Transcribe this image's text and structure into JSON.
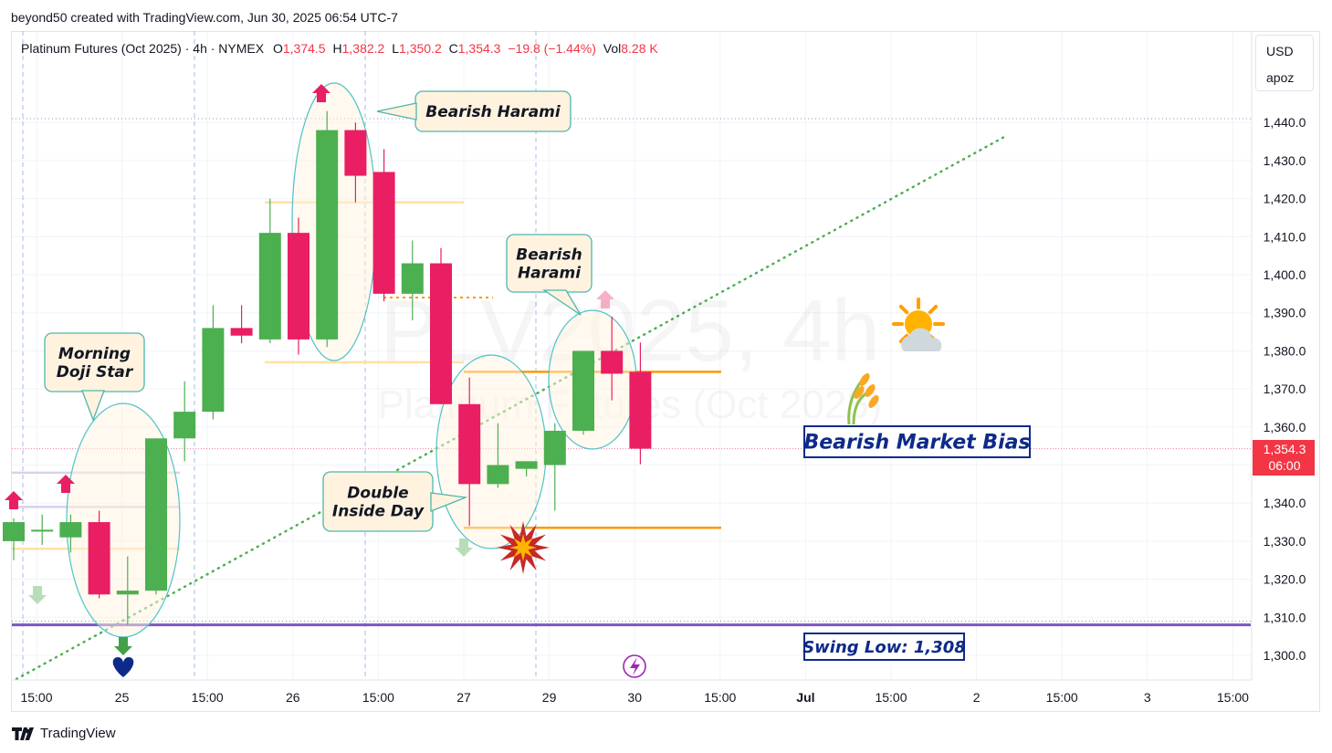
{
  "header": {
    "author_line": "beyond50 created with TradingView.com, Jun 30, 2025 06:54 UTC-7"
  },
  "legend": {
    "symbol": "Platinum Futures (Oct 2025) · 4h · NYMEX",
    "open_label": "O",
    "open": "1,374.5",
    "high_label": "H",
    "high": "1,382.2",
    "low_label": "L",
    "low": "1,350.2",
    "close_label": "C",
    "close": "1,354.3",
    "change": "−19.8 (−1.44%)",
    "vol_label": "Vol",
    "vol": "8.28 K"
  },
  "currency_box": {
    "currency": "USD",
    "unit": "apoz"
  },
  "price_tag": {
    "price": "1,354.3",
    "countdown": "06:00"
  },
  "watermark": {
    "line1": "PLV2025, 4h",
    "line2": "Platinum Futures (Oct 2025)"
  },
  "brand": {
    "name": "TradingView"
  },
  "colors": {
    "up": "#4caf50",
    "down": "#e91e63",
    "trend": "#4caf50",
    "orange": "#ff9800",
    "swing": "#7e57c2",
    "accent_red": "#f23645"
  },
  "chart_data": {
    "type": "candlestick",
    "interval": "4h",
    "y_axis": {
      "ticks": [
        1300,
        1310,
        1320,
        1330,
        1340,
        1350,
        1360,
        1370,
        1380,
        1390,
        1400,
        1410,
        1420,
        1430,
        1440
      ],
      "tick_labels": [
        "1,300.0",
        "1,310.0",
        "1,320.0",
        "1,330.0",
        "1,340.0",
        "1,350.0",
        "1,360.0",
        "1,370.0",
        "1,380.0",
        "1,390.0",
        "1,400.0",
        "1,410.0",
        "1,420.0",
        "1,430.0",
        "1,440.0"
      ],
      "ylim": [
        1295,
        1450
      ]
    },
    "x_axis": {
      "labels": [
        "15:00",
        "25",
        "15:00",
        "26",
        "15:00",
        "27",
        "29",
        "30",
        "15:00",
        "Jul",
        "15:00",
        "2",
        "15:00",
        "3",
        "15:00"
      ]
    },
    "candles": [
      {
        "o": 1330,
        "h": 1336,
        "l": 1325,
        "c": 1335
      },
      {
        "o": 1333,
        "h": 1337,
        "l": 1329,
        "c": 1333
      },
      {
        "o": 1331,
        "h": 1337,
        "l": 1327,
        "c": 1335
      },
      {
        "o": 1335,
        "h": 1338,
        "l": 1315,
        "c": 1316
      },
      {
        "o": 1316,
        "h": 1326,
        "l": 1308,
        "c": 1317
      },
      {
        "o": 1317,
        "h": 1357,
        "l": 1316,
        "c": 1357
      },
      {
        "o": 1357,
        "h": 1372,
        "l": 1351,
        "c": 1364
      },
      {
        "o": 1364,
        "h": 1392,
        "l": 1362,
        "c": 1386
      },
      {
        "o": 1386,
        "h": 1392,
        "l": 1382,
        "c": 1384
      },
      {
        "o": 1383,
        "h": 1420,
        "l": 1382,
        "c": 1411
      },
      {
        "o": 1411,
        "h": 1415,
        "l": 1379,
        "c": 1383
      },
      {
        "o": 1383,
        "h": 1443,
        "l": 1381,
        "c": 1438
      },
      {
        "o": 1438,
        "h": 1440,
        "l": 1419,
        "c": 1426
      },
      {
        "o": 1427,
        "h": 1433,
        "l": 1393,
        "c": 1395
      },
      {
        "o": 1395,
        "h": 1409,
        "l": 1388,
        "c": 1403
      },
      {
        "o": 1403,
        "h": 1407,
        "l": 1366,
        "c": 1366
      },
      {
        "o": 1366,
        "h": 1373,
        "l": 1334,
        "c": 1345
      },
      {
        "o": 1345,
        "h": 1361,
        "l": 1344,
        "c": 1350
      },
      {
        "o": 1349,
        "h": 1351,
        "l": 1347,
        "c": 1351
      },
      {
        "o": 1350,
        "h": 1361,
        "l": 1338,
        "c": 1359
      },
      {
        "o": 1359,
        "h": 1380,
        "l": 1358,
        "c": 1380
      },
      {
        "o": 1380,
        "h": 1389,
        "l": 1367,
        "c": 1374
      },
      {
        "o": 1374.5,
        "h": 1382.2,
        "l": 1350.2,
        "c": 1354.3
      }
    ],
    "levels": [
      {
        "name": "Swing Low",
        "value": 1308
      },
      {
        "name": "Double Inside Day high",
        "value": 1374.5
      },
      {
        "name": "Double Inside Day low",
        "value": 1333.5
      }
    ],
    "annotations": [
      "Bearish Harami",
      "Bearish Harami",
      "Morning Doji Star",
      "Double Inside Day",
      "Bearish Market Bias",
      "Swing Low: 1,308"
    ]
  },
  "annotations": {
    "harami_top": "Bearish Harami",
    "harami_mid_1": "Bearish",
    "harami_mid_2": "Harami",
    "morning_1": "Morning",
    "morning_2": "Doji Star",
    "inside_1": "Double",
    "inside_2": "Inside Day",
    "bias": "Bearish Market Bias",
    "swing": "Swing Low: 1,308"
  }
}
